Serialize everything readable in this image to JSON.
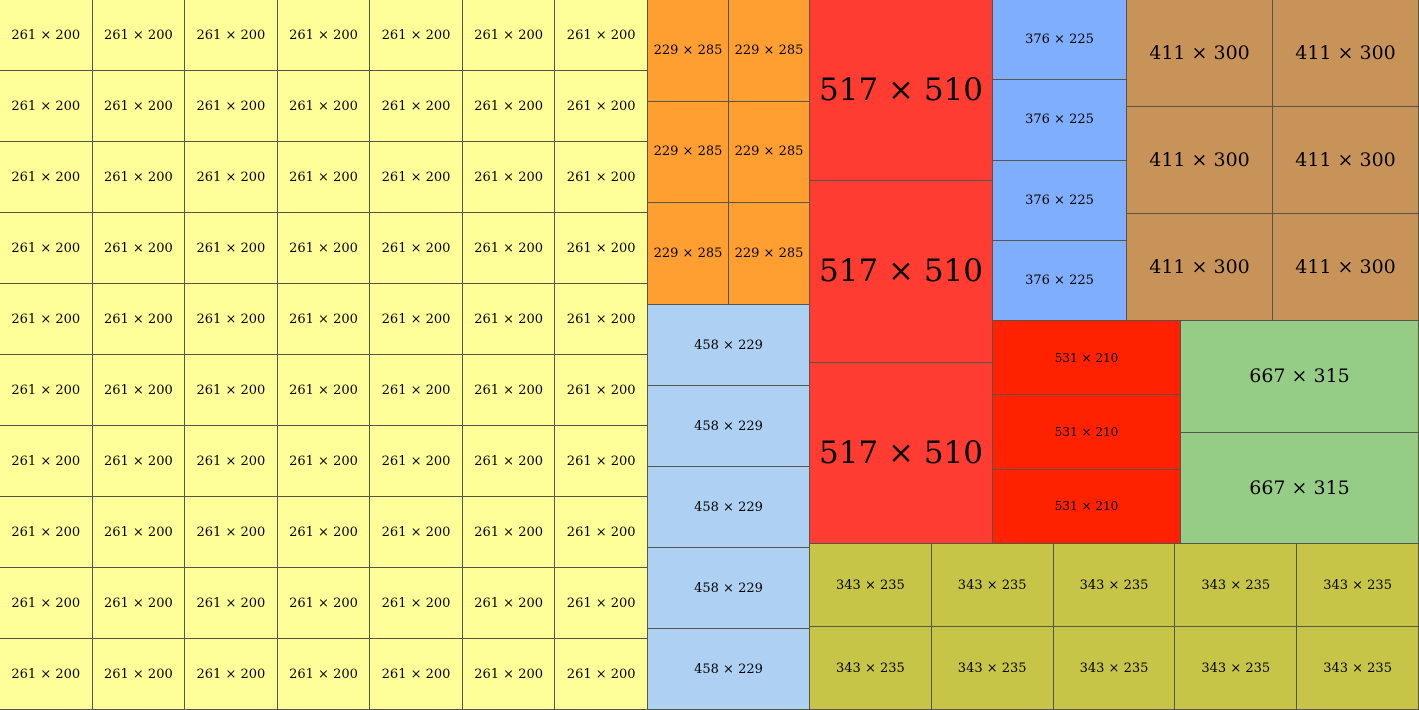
{
  "groups": [
    {
      "id": "yellow",
      "label": "261 × 200",
      "color": "#ffff99",
      "rows": 10,
      "cols": 7,
      "size": "small"
    },
    {
      "id": "orange",
      "label": "229 × 285",
      "color": "#ff9e31",
      "rows": 3,
      "cols": 2,
      "size": "small"
    },
    {
      "id": "light-blue",
      "label": "458 × 229",
      "color": "#aed0f3",
      "rows": 5,
      "cols": 1,
      "size": "small"
    },
    {
      "id": "red",
      "label": "517 × 510",
      "color": "#ff3c31",
      "rows": 3,
      "cols": 1,
      "size": "xlarge"
    },
    {
      "id": "blue",
      "label": "376 × 225",
      "color": "#80aeff",
      "rows": 4,
      "cols": 1,
      "size": "small"
    },
    {
      "id": "brown",
      "label": "411 × 300",
      "color": "#c89358",
      "rows": 3,
      "cols": 2,
      "size": "large"
    },
    {
      "id": "bright-red",
      "label": "531 × 210",
      "color": "#ff2200",
      "rows": 3,
      "cols": 1,
      "size": "tiny"
    },
    {
      "id": "green",
      "label": "667 × 315",
      "color": "#96cd86",
      "rows": 2,
      "cols": 1,
      "size": "large"
    },
    {
      "id": "olive",
      "label": "343 × 235",
      "color": "#c6c547",
      "rows": 2,
      "cols": 5,
      "size": "small"
    }
  ]
}
